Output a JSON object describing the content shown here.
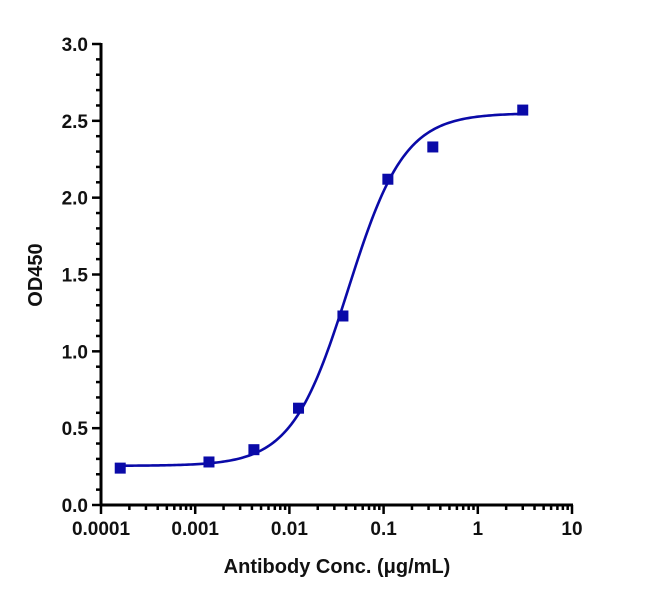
{
  "chart_data": {
    "type": "scatter",
    "title": "",
    "xlabel": "Antibody Conc. (μg/mL)",
    "ylabel": "OD450",
    "xscale": "log",
    "xlim": [
      0.0001,
      10
    ],
    "ylim": [
      0,
      3.0
    ],
    "x_ticks": [
      "0.0001",
      "0.001",
      "0.01",
      "0.1",
      "1",
      "10"
    ],
    "y_ticks": [
      "0.0",
      "0.5",
      "1.0",
      "1.5",
      "2.0",
      "2.5",
      "3.0"
    ],
    "grid": false,
    "legend": null,
    "series": [
      {
        "name": "OD450",
        "marker": "square",
        "color": "#0a0aa8",
        "fit": "4PL sigmoidal curve",
        "x": [
          0.00016,
          0.0014,
          0.0042,
          0.0125,
          0.037,
          0.111,
          0.333,
          3.0
        ],
        "y": [
          0.24,
          0.28,
          0.36,
          0.63,
          1.23,
          2.12,
          2.33,
          2.57
        ]
      }
    ],
    "fit_params": {
      "bottom": 0.255,
      "top": 2.55,
      "ec50": 0.042,
      "hill": 1.45
    }
  }
}
